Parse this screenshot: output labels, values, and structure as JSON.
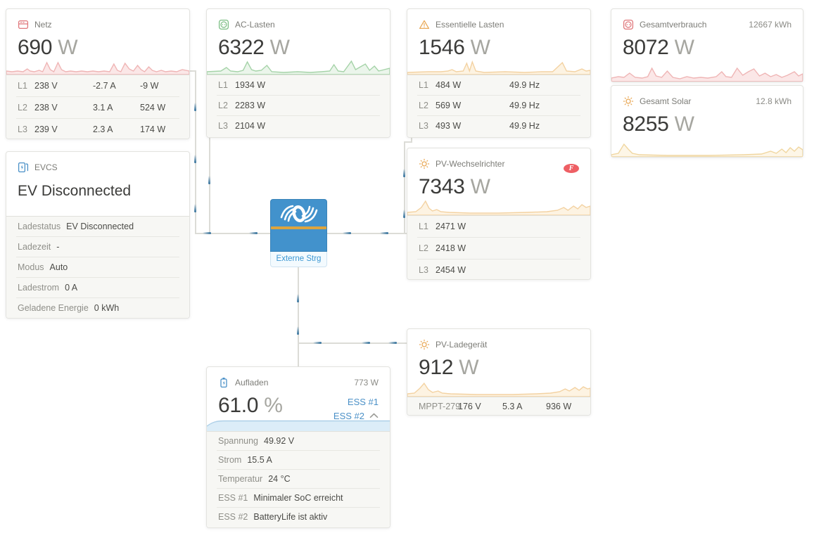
{
  "cards": {
    "grid": {
      "title": "Netz",
      "value": "690",
      "unit": "W",
      "rows": [
        [
          "L1",
          "238 V",
          "-2.7 A",
          "-9 W"
        ],
        [
          "L2",
          "238 V",
          "3.1 A",
          "524 W"
        ],
        [
          "L3",
          "239 V",
          "2.3 A",
          "174 W"
        ]
      ]
    },
    "ac_loads": {
      "title": "AC-Lasten",
      "value": "6322",
      "unit": "W",
      "rows": [
        [
          "L1",
          "1934 W"
        ],
        [
          "L2",
          "2283 W"
        ],
        [
          "L3",
          "2104 W"
        ]
      ]
    },
    "essential_loads": {
      "title": "Essentielle Lasten",
      "value": "1546",
      "unit": "W",
      "rows": [
        [
          "L1",
          "484 W",
          "49.9 Hz"
        ],
        [
          "L2",
          "569 W",
          "49.9 Hz"
        ],
        [
          "L3",
          "493 W",
          "49.9 Hz"
        ]
      ]
    },
    "total_consumption": {
      "title": "Gesamtverbrauch",
      "energy": "12667 kWh",
      "value": "8072",
      "unit": "W"
    },
    "total_solar": {
      "title": "Gesamt Solar",
      "energy": "12.8 kWh",
      "value": "8255",
      "unit": "W"
    },
    "evcs": {
      "title": "EVCS",
      "status": "EV Disconnected",
      "rows": [
        [
          "Ladestatus",
          "EV Disconnected"
        ],
        [
          "Ladezeit",
          "-"
        ],
        [
          "Modus",
          "Auto"
        ],
        [
          "Ladestrom",
          "0 A"
        ],
        [
          "Geladene Energie",
          "0 kWh"
        ]
      ]
    },
    "pv_inverter": {
      "title": "PV-Wechselrichter",
      "badge": "F",
      "value": "7343",
      "unit": "W",
      "rows": [
        [
          "L1",
          "2471 W"
        ],
        [
          "L2",
          "2418 W"
        ],
        [
          "L3",
          "2454 W"
        ]
      ]
    },
    "inverter_box": {
      "label": "Externe Strg"
    },
    "battery": {
      "title": "Aufladen",
      "power": "773 W",
      "value": "61.0",
      "unit": "%",
      "links": [
        "ESS #1",
        "ESS #2"
      ],
      "rows": [
        [
          "Spannung",
          "49.92 V"
        ],
        [
          "Strom",
          "15.5 A"
        ],
        [
          "Temperatur",
          "24 °C"
        ],
        [
          "ESS #1",
          "Minimaler SoC erreicht"
        ],
        [
          "ESS #2",
          "BatteryLife ist aktiv"
        ]
      ]
    },
    "pv_charger": {
      "title": "PV-Ladegerät",
      "value": "912",
      "unit": "W",
      "rows": [
        [
          "MPPT-279",
          "176 V",
          "5.3 A",
          "936 W"
        ]
      ]
    }
  },
  "colors": {
    "grid_red": "#e0787c",
    "loads_green": "#7dbf85",
    "warning_orange": "#e9a958",
    "solar_orange": "#e9a958",
    "victron_blue": "#4292cc",
    "stripe_orange": "#dda43e",
    "link_blue": "#4a90c7",
    "fronius_red": "#ee5f64"
  }
}
